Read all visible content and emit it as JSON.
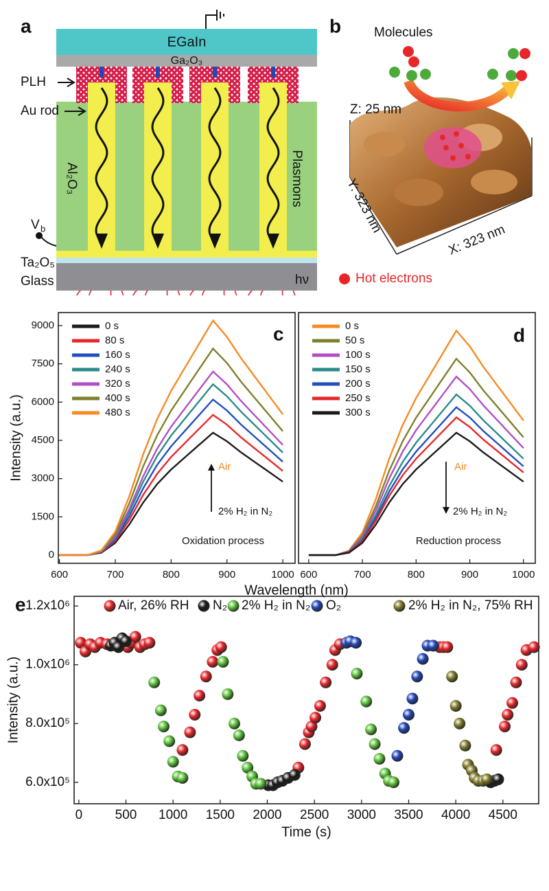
{
  "panel_a": {
    "label": "a",
    "egain": "EGaIn",
    "oxide": "Ga₂O₃",
    "plh": "PLH",
    "au_rod": "Au rod",
    "alumina": "Al₂O₃",
    "plasmons": "Plasmons",
    "bias": "V",
    "bias_sub": "b",
    "tantala": "Ta₂O₅",
    "glass": "Glass",
    "photon": "hν"
  },
  "panel_b": {
    "label": "b",
    "molecules": "Molecules",
    "z": "Z: 25 nm",
    "y": "Y: 323 nm",
    "x": "X: 323 nm",
    "hot_electrons": "Hot electrons"
  },
  "chart_data": [
    {
      "type": "line",
      "panel_label": "c",
      "x_label": "Wavelength (nm)",
      "y_label": "Intensity (a.u.)",
      "x": [
        600,
        625,
        650,
        675,
        700,
        725,
        750,
        775,
        800,
        825,
        850,
        875,
        900,
        925,
        950,
        975,
        1000
      ],
      "xlim": [
        598,
        1022
      ],
      "xticks": [
        600,
        700,
        800,
        900,
        1000
      ],
      "ylim": [
        -320,
        9510
      ],
      "yticks": [
        0,
        1500,
        3000,
        4500,
        6000,
        7500,
        9000
      ],
      "annotations": [
        {
          "text": "Air",
          "color": "#f58a23"
        },
        {
          "text": "2% H₂ in N₂"
        },
        {
          "text": "Oxidation process"
        }
      ],
      "series": [
        {
          "name": "0 s",
          "color": "#1a1a1a",
          "values": [
            0,
            0,
            0,
            96,
            480,
            1200,
            2064,
            2784,
            3360,
            3840,
            4320,
            4800,
            4464,
            4032,
            3648,
            3264,
            2880
          ]
        },
        {
          "name": "80 s",
          "color": "#e8262a",
          "values": [
            0,
            0,
            0,
            110,
            550,
            1375,
            2365,
            3190,
            3850,
            4400,
            4950,
            5500,
            5115,
            4620,
            4180,
            3740,
            3300
          ]
        },
        {
          "name": "160 s",
          "color": "#1f4fbf",
          "values": [
            0,
            0,
            0,
            122,
            610,
            1525,
            2623,
            3538,
            4270,
            4880,
            5490,
            6100,
            5673,
            5124,
            4636,
            4148,
            3660
          ]
        },
        {
          "name": "240 s",
          "color": "#2a8a8a",
          "values": [
            0,
            0,
            0,
            134,
            670,
            1675,
            2881,
            3886,
            4690,
            5360,
            6030,
            6700,
            6231,
            5628,
            5092,
            4556,
            4020
          ]
        },
        {
          "name": "320 s",
          "color": "#b04fc4",
          "values": [
            0,
            0,
            0,
            144,
            720,
            1800,
            3096,
            4176,
            5040,
            5760,
            6480,
            7200,
            6696,
            6048,
            5472,
            4896,
            4320
          ]
        },
        {
          "name": "400 s",
          "color": "#7f7f2a",
          "values": [
            0,
            0,
            0,
            162,
            810,
            2025,
            3483,
            4698,
            5670,
            6480,
            7290,
            8100,
            7533,
            6804,
            6156,
            5508,
            4860
          ]
        },
        {
          "name": "480 s",
          "color": "#f58a23",
          "values": [
            0,
            0,
            0,
            184,
            920,
            2300,
            3956,
            5336,
            6440,
            7360,
            8280,
            9200,
            8556,
            7728,
            6992,
            6256,
            5520
          ]
        }
      ]
    },
    {
      "type": "line",
      "panel_label": "d",
      "x": [
        600,
        625,
        650,
        675,
        700,
        725,
        750,
        775,
        800,
        825,
        850,
        875,
        900,
        925,
        950,
        975,
        1000
      ],
      "xlim": [
        581,
        1022
      ],
      "xticks": [
        600,
        700,
        800,
        900,
        1000
      ],
      "ylim": [
        -320,
        9510
      ],
      "annotations": [
        {
          "text": "Air",
          "color": "#f58a23"
        },
        {
          "text": "2% H₂ in N₂"
        },
        {
          "text": "Reduction process"
        }
      ],
      "series": [
        {
          "name": "0 s",
          "color": "#f58a23",
          "values": [
            0,
            0,
            0,
            176,
            880,
            2200,
            3784,
            5104,
            6160,
            7040,
            7920,
            8800,
            8184,
            7392,
            6688,
            5984,
            5280
          ]
        },
        {
          "name": "50 s",
          "color": "#7f7f2a",
          "values": [
            0,
            0,
            0,
            154,
            770,
            1925,
            3311,
            4466,
            5390,
            6160,
            6930,
            7700,
            7161,
            6468,
            5852,
            5236,
            4620
          ]
        },
        {
          "name": "100 s",
          "color": "#b04fc4",
          "values": [
            0,
            0,
            0,
            140,
            700,
            1750,
            3010,
            4060,
            4900,
            5600,
            6300,
            7000,
            6510,
            5880,
            5320,
            4760,
            4200
          ]
        },
        {
          "name": "150 s",
          "color": "#2a8a8a",
          "values": [
            0,
            0,
            0,
            126,
            630,
            1575,
            2709,
            3654,
            4410,
            5040,
            5670,
            6300,
            5859,
            5292,
            4788,
            4284,
            3780
          ]
        },
        {
          "name": "200 s",
          "color": "#1f4fbf",
          "values": [
            0,
            0,
            0,
            116,
            580,
            1450,
            2494,
            3364,
            4060,
            4640,
            5220,
            5800,
            5394,
            4872,
            4408,
            3944,
            3480
          ]
        },
        {
          "name": "250 s",
          "color": "#e8262a",
          "values": [
            0,
            0,
            0,
            108,
            540,
            1350,
            2322,
            3132,
            3780,
            4320,
            4860,
            5400,
            5022,
            4536,
            4104,
            3672,
            3240
          ]
        },
        {
          "name": "300 s",
          "color": "#1a1a1a",
          "values": [
            0,
            0,
            0,
            96,
            480,
            1200,
            2064,
            2784,
            3360,
            3840,
            4320,
            4800,
            4464,
            4032,
            3648,
            3264,
            2880
          ]
        }
      ]
    },
    {
      "type": "scatter",
      "panel_label": "e",
      "x_label": "Time (s)",
      "y_label": "Intensity (a.u.)",
      "xlim": [
        -50,
        4880
      ],
      "xticks": [
        0,
        500,
        1000,
        1500,
        2000,
        2500,
        3000,
        3500,
        4000,
        4500
      ],
      "ylim": [
        527000,
        1233000
      ],
      "yticks": [
        {
          "value": 600000,
          "label": "6.0x10⁵"
        },
        {
          "value": 800000,
          "label": "8.0x10⁵"
        },
        {
          "value": 1000000,
          "label": "1.0x10⁶"
        },
        {
          "value": 1200000,
          "label": "1.2x10⁶"
        }
      ],
      "series": [
        {
          "name": "Air, 26% RH",
          "color": "#e8262a",
          "x": [
            20,
            70,
            120,
            170,
            230,
            300,
            520,
            560,
            600,
            650,
            700,
            750,
            1100,
            1180,
            1230,
            1280,
            1350,
            1420,
            1470,
            1510,
            2330,
            2400,
            2440,
            2470,
            2510,
            2560,
            2620,
            2690,
            2720,
            2770,
            3830,
            3870,
            3910,
            4430,
            4520,
            4550,
            4600,
            4640,
            4700,
            4750,
            4830
          ],
          "values": [
            1075000,
            1045000,
            1070000,
            1060000,
            1075000,
            1070000,
            1060000,
            1075000,
            1095000,
            1060000,
            1070000,
            1075000,
            710000,
            770000,
            830000,
            895000,
            960000,
            1010000,
            1050000,
            1060000,
            650000,
            730000,
            770000,
            790000,
            820000,
            860000,
            940000,
            1000000,
            1050000,
            1070000,
            1060000,
            1060000,
            1060000,
            710000,
            790000,
            830000,
            870000,
            940000,
            1000000,
            1050000,
            1060000
          ]
        },
        {
          "name": "N₂",
          "color": "#1a1a1a",
          "x": [
            340,
            380,
            420,
            460,
            500,
            2010,
            2060,
            2110,
            2160,
            2220,
            2290,
            4370,
            4410,
            4450
          ],
          "values": [
            1065000,
            1075000,
            1060000,
            1090000,
            1080000,
            590000,
            590000,
            600000,
            605000,
            615000,
            625000,
            600000,
            605000,
            610000
          ]
        },
        {
          "name": "2% H₂ in N₂",
          "color": "#5cc23a",
          "x": [
            800,
            870,
            900,
            960,
            1000,
            1050,
            1100,
            1530,
            1580,
            1650,
            1700,
            1740,
            1790,
            1840,
            1880,
            1930,
            2950,
            3050,
            3100,
            3140,
            3190,
            3250,
            3290,
            3340
          ],
          "values": [
            940000,
            845000,
            790000,
            740000,
            670000,
            620000,
            615000,
            1010000,
            900000,
            800000,
            760000,
            690000,
            650000,
            620000,
            595000,
            595000,
            970000,
            875000,
            780000,
            730000,
            680000,
            630000,
            605000,
            600000
          ]
        },
        {
          "name": "O₂",
          "color": "#2346b8",
          "x": [
            2840,
            2880,
            2940,
            3380,
            3450,
            3500,
            3540,
            3590,
            3650,
            3700,
            3760
          ],
          "values": [
            1075000,
            1080000,
            1075000,
            690000,
            785000,
            830000,
            885000,
            960000,
            1020000,
            1065000,
            1065000
          ]
        },
        {
          "name": "2% H₂ in N₂, 75% RH",
          "color": "#7f7a2a",
          "x": [
            3960,
            4000,
            4040,
            4100,
            4130,
            4170,
            4200,
            4240,
            4290,
            4330
          ],
          "values": [
            960000,
            860000,
            800000,
            725000,
            660000,
            640000,
            615000,
            605000,
            605000,
            610000
          ]
        }
      ]
    }
  ]
}
